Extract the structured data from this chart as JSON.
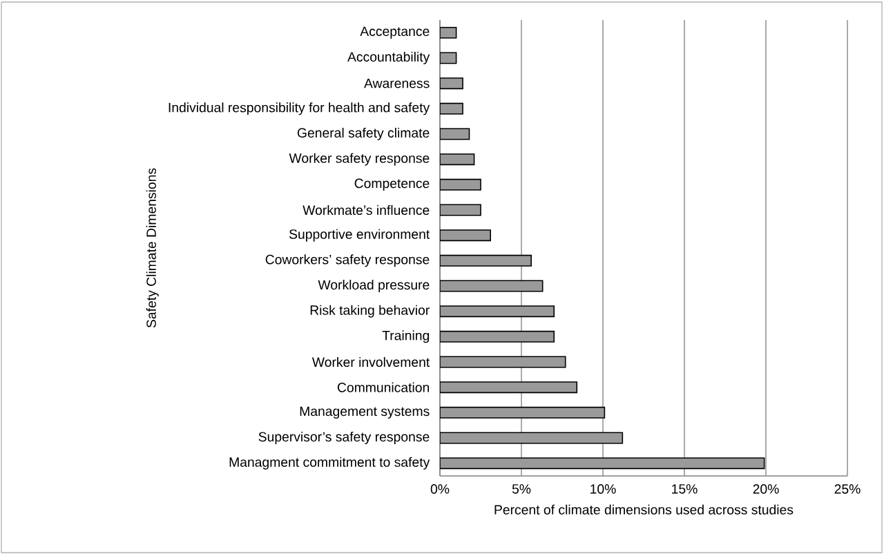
{
  "chart_data": {
    "type": "bar",
    "orientation": "horizontal",
    "xlabel": "Percent of climate dimensions used across studies",
    "ylabel": "Safety Climate Dimensions",
    "categories": [
      "Acceptance",
      "Accountability",
      "Awareness",
      "Individual responsibility  for health and safety",
      "General safety climate",
      "Worker safety response",
      "Competence",
      "Workmate’s influence",
      "Supportive environment",
      "Coworkers’ safety response",
      "Workload pressure",
      "Risk taking behavior",
      "Training",
      "Worker involvement",
      "Communication",
      "Management systems",
      "Supervisor’s safety response",
      "Managment commitment to safety"
    ],
    "values": [
      1.0,
      1.0,
      1.4,
      1.4,
      1.8,
      2.1,
      2.5,
      2.5,
      3.1,
      5.6,
      6.3,
      7.0,
      7.0,
      7.7,
      8.4,
      10.1,
      11.2,
      19.9
    ],
    "color": "#9a9a9a",
    "xlim": [
      0,
      25
    ],
    "xticks": [
      {
        "value": 0,
        "label": "0%"
      },
      {
        "value": 5,
        "label": "5%"
      },
      {
        "value": 10,
        "label": "10%"
      },
      {
        "value": 15,
        "label": "15%"
      },
      {
        "value": 20,
        "label": "20%"
      },
      {
        "value": 25,
        "label": "25%"
      }
    ],
    "grid": "x"
  }
}
